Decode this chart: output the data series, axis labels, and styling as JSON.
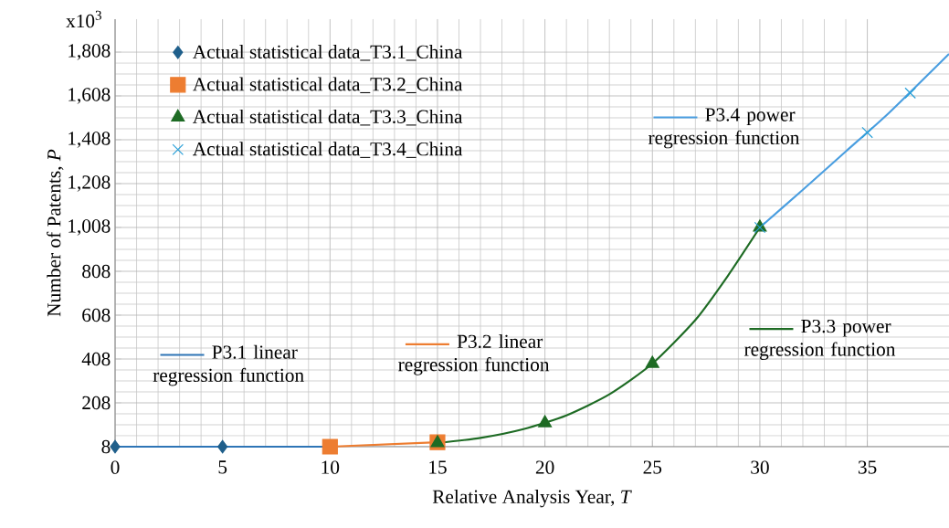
{
  "chart_data": {
    "type": "line",
    "xlabel": "Relative Analysis Year, *T*",
    "ylabel": "Number of Patents, *P*",
    "annotations": [
      "x10$^{3}$"
    ],
    "xlim": [
      0,
      38.8
    ],
    "ylim": [
      8,
      1958
    ],
    "xticks": [
      0,
      5,
      10,
      15,
      20,
      25,
      30,
      35
    ],
    "yticks": [
      8,
      208,
      408,
      608,
      808,
      {
        "value": 1008,
        "label": "1,008"
      },
      {
        "value": 1208,
        "label": "1,208"
      },
      {
        "value": 1408,
        "label": "1,408"
      },
      {
        "value": 1608,
        "label": "1,608"
      },
      {
        "value": 1808,
        "label": "1,808"
      }
    ],
    "grid": true,
    "legend": "top left",
    "series": [
      {
        "name": "Actual statistical data_T3.1_China",
        "type": "scatter",
        "marker": "diamond",
        "color": "#1f5f8b",
        "x": [
          0,
          5
        ],
        "values": [
          8,
          8
        ]
      },
      {
        "name": "Actual statistical data_T3.2_China",
        "type": "scatter",
        "marker": "square",
        "color": "#ed7d31",
        "x": [
          10,
          15
        ],
        "values": [
          8,
          28
        ]
      },
      {
        "name": "Actual statistical data_T3.3_China",
        "type": "scatter",
        "marker": "triangle",
        "color": "#1e6b24",
        "x": [
          15,
          20,
          25,
          30
        ],
        "values": [
          25,
          116,
          387,
          1008
        ]
      },
      {
        "name": "Actual statistical data_T3.4_China",
        "type": "scatter",
        "marker": "cross",
        "color": "#2aa0d8",
        "x": [
          30,
          35,
          37
        ],
        "values": [
          1008,
          1441,
          1621
        ]
      },
      {
        "name": "P3.1 linear regression function",
        "color": "#2e75b6",
        "x": [
          0,
          10
        ],
        "values": [
          8,
          8
        ]
      },
      {
        "name": "P3.2 linear regression function",
        "color": "#ed7d31",
        "x": [
          10,
          15
        ],
        "values": [
          8,
          28
        ]
      },
      {
        "name": "P3.3 power regression function",
        "color": "#1e6b24",
        "x": [
          15,
          17,
          19,
          21,
          23,
          25,
          27,
          28.5,
          30
        ],
        "values": [
          25,
          48,
          88,
          151,
          247,
          387,
          586,
          786,
          1008
        ]
      },
      {
        "name": "P3.4 power regression function",
        "color": "#4a9ee0",
        "x": [
          30,
          32,
          34,
          36,
          38.8
        ],
        "values": [
          1008,
          1180,
          1355,
          1530,
          1800
        ]
      }
    ]
  }
}
